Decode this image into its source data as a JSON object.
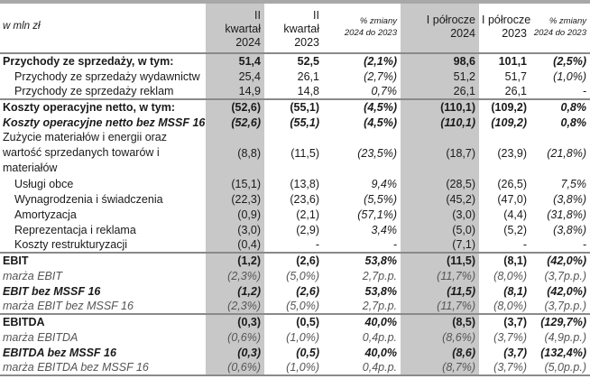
{
  "header": {
    "unit": "w mln zł",
    "columns": [
      [
        "II",
        "kwartał",
        "2024"
      ],
      [
        "II",
        "kwartał",
        "2023"
      ],
      [
        "% zmiany",
        "2024 do 2023"
      ],
      [
        "I półrocze",
        "2024"
      ],
      [
        "I półrocze",
        "2023"
      ],
      [
        "% zmiany",
        "2024 do 2023"
      ]
    ]
  },
  "rows": [
    {
      "label": "Przychody ze sprzedaży, w tym:",
      "style": "bold",
      "values": [
        "51,4",
        "52,5",
        "(2,1%)",
        "98,6",
        "101,1",
        "(2,5%)"
      ]
    },
    {
      "label": "Przychody ze sprzedaży wydawnictw",
      "style": "sub",
      "values": [
        "25,4",
        "26,1",
        "(2,7%)",
        "51,2",
        "51,7",
        "(1,0%)"
      ]
    },
    {
      "label": "Przychody ze sprzedaży reklam",
      "style": "sub",
      "values": [
        "14,9",
        "14,8",
        "0,7%",
        "26,1",
        "26,1",
        "-"
      ]
    },
    {
      "label": "Koszty operacyjne netto, w tym:",
      "style": "bold sep",
      "values": [
        "(52,6)",
        "(55,1)",
        "(4,5%)",
        "(110,1)",
        "(109,2)",
        "0,8%"
      ]
    },
    {
      "label": "Koszty operacyjne netto bez MSSF 16",
      "style": "bi",
      "values": [
        "(52,6)",
        "(55,1)",
        "(4,5%)",
        "(110,1)",
        "(109,2)",
        "0,8%"
      ]
    },
    {
      "label": "Zużycie materiałów i energii oraz wartość sprzedanych towarów i materiałów",
      "style": "multi",
      "values": [
        "(8,8)",
        "(11,5)",
        "(23,5%)",
        "(18,7)",
        "(23,9)",
        "(21,8%)"
      ]
    },
    {
      "label": "Usługi obce",
      "style": "sub",
      "values": [
        "(15,1)",
        "(13,8)",
        "9,4%",
        "(28,5)",
        "(26,5)",
        "7,5%"
      ]
    },
    {
      "label": "Wynagrodzenia i świadczenia",
      "style": "sub",
      "values": [
        "(22,3)",
        "(23,6)",
        "(5,5%)",
        "(45,2)",
        "(47,0)",
        "(3,8%)"
      ]
    },
    {
      "label": "Amortyzacja",
      "style": "sub",
      "values": [
        "(0,9)",
        "(2,1)",
        "(57,1%)",
        "(3,0)",
        "(4,4)",
        "(31,8%)"
      ]
    },
    {
      "label": "Reprezentacja i reklama",
      "style": "sub",
      "values": [
        "(3,0)",
        "(2,9)",
        "3,4%",
        "(5,0)",
        "(5,2)",
        "(3,8%)"
      ]
    },
    {
      "label": "Koszty restrukturyzacji",
      "style": "sub",
      "values": [
        "(0,4)",
        "-",
        "-",
        "(7,1)",
        "-",
        "-"
      ]
    },
    {
      "label": "EBIT",
      "style": "bold sep",
      "values": [
        "(1,2)",
        "(2,6)",
        "53,8%",
        "(11,5)",
        "(8,1)",
        "(42,0%)"
      ]
    },
    {
      "label": "marża EBIT",
      "style": "it",
      "values": [
        "(2,3%)",
        "(5,0%)",
        "2,7p.p.",
        "(11,7%)",
        "(8,0%)",
        "(3,7p.p.)"
      ]
    },
    {
      "label": "EBIT bez MSSF 16",
      "style": "bi",
      "values": [
        "(1,2)",
        "(2,6)",
        "53,8%",
        "(11,5)",
        "(8,1)",
        "(42,0%)"
      ]
    },
    {
      "label": "marża EBIT bez MSSF 16",
      "style": "it",
      "values": [
        "(2,3%)",
        "(5,0%)",
        "2,7p.p.",
        "(11,7%)",
        "(8,0%)",
        "(3,7p.p.)"
      ]
    },
    {
      "label": "EBITDA",
      "style": "bold sep",
      "values": [
        "(0,3)",
        "(0,5)",
        "40,0%",
        "(8,5)",
        "(3,7)",
        "(129,7%)"
      ]
    },
    {
      "label": "marża EBITDA",
      "style": "it",
      "values": [
        "(0,6%)",
        "(1,0%)",
        "0,4p.p.",
        "(8,6%)",
        "(3,7%)",
        "(4,9p.p.)"
      ]
    },
    {
      "label": "EBITDA bez MSSF 16",
      "style": "bi",
      "values": [
        "(0,3)",
        "(0,5)",
        "40,0%",
        "(8,6)",
        "(3,7)",
        "(132,4%)"
      ]
    },
    {
      "label": "marża EBITDA bez MSSF 16",
      "style": "it last",
      "values": [
        "(0,6%)",
        "(1,0%)",
        "0,4p.p.",
        "(8,7%)",
        "(3,7%)",
        "(5,0p.p.)"
      ]
    }
  ]
}
